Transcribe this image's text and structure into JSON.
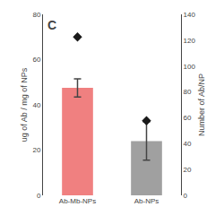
{
  "chart_data": {
    "type": "bar",
    "categories": [
      "Ab-Mb-NPs",
      "Ab-NPs"
    ],
    "series": [
      {
        "type": "bar",
        "values": [
          47.5,
          24.0
        ],
        "errors": [
          4.0,
          8.5
        ],
        "colors": [
          "#f08080",
          "#a0a0a0"
        ]
      },
      {
        "type": "scatter",
        "marker": "diamond",
        "color": "#1a1a1a",
        "values": [
          70.0,
          33.0
        ]
      }
    ],
    "ylabel": "ug of Ab / mg of NPs",
    "y2label": "Number of Ab/NP",
    "ylim": [
      0,
      80
    ],
    "yticks": [
      0,
      20,
      40,
      60,
      80
    ],
    "y2lim": [
      0,
      140
    ],
    "y2ticks": [
      0,
      20,
      40,
      60,
      80,
      100,
      120,
      140
    ],
    "grid": false,
    "annotations": [
      "C"
    ]
  }
}
